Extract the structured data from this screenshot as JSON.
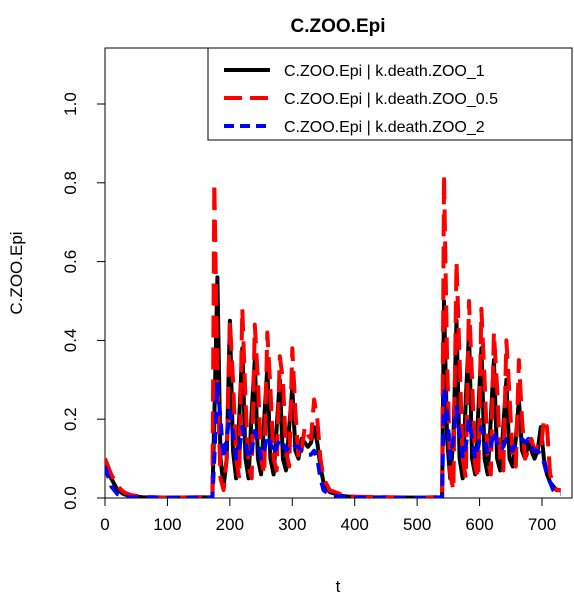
{
  "chart_data": {
    "type": "line",
    "title": "C.ZOO.Epi",
    "xlabel": "t",
    "ylabel": "C.ZOO.Epi",
    "xlim": [
      0,
      730
    ],
    "ylim": [
      0,
      1.1
    ],
    "xticks": [
      0,
      100,
      200,
      300,
      400,
      500,
      600,
      700
    ],
    "yticks": [
      0.0,
      0.2,
      0.4,
      0.6,
      0.8,
      1.0
    ],
    "grid": false,
    "legend": "top-right",
    "series": [
      {
        "name": "C.ZOO.Epi | k.death.ZOO_1",
        "color": "#000000",
        "dash": "solid",
        "x": [
          0,
          10,
          20,
          30,
          40,
          60,
          100,
          172,
          175,
          180,
          185,
          190,
          195,
          200,
          205,
          210,
          215,
          220,
          225,
          230,
          235,
          240,
          245,
          250,
          255,
          260,
          265,
          270,
          275,
          280,
          285,
          290,
          295,
          300,
          305,
          310,
          315,
          320,
          325,
          330,
          335,
          340,
          345,
          350,
          360,
          380,
          400,
          500,
          540,
          543,
          548,
          553,
          558,
          563,
          568,
          573,
          578,
          583,
          588,
          593,
          598,
          603,
          608,
          613,
          618,
          623,
          628,
          633,
          638,
          643,
          648,
          653,
          658,
          663,
          668,
          673,
          678,
          683,
          688,
          693,
          698,
          703,
          708,
          713,
          718,
          723,
          730
        ],
        "y": [
          0.1,
          0.05,
          0.02,
          0.01,
          0.005,
          0.002,
          0.001,
          0.002,
          0.2,
          0.56,
          0.1,
          0.03,
          0.1,
          0.45,
          0.12,
          0.05,
          0.2,
          0.38,
          0.1,
          0.05,
          0.22,
          0.35,
          0.1,
          0.06,
          0.2,
          0.33,
          0.1,
          0.06,
          0.18,
          0.3,
          0.1,
          0.07,
          0.18,
          0.28,
          0.12,
          0.1,
          0.15,
          0.14,
          0.13,
          0.14,
          0.18,
          0.14,
          0.08,
          0.04,
          0.015,
          0.005,
          0.002,
          0.001,
          0.002,
          0.5,
          0.15,
          0.05,
          0.15,
          0.45,
          0.1,
          0.05,
          0.25,
          0.42,
          0.1,
          0.06,
          0.22,
          0.38,
          0.1,
          0.06,
          0.2,
          0.35,
          0.1,
          0.07,
          0.18,
          0.3,
          0.1,
          0.08,
          0.15,
          0.25,
          0.12,
          0.1,
          0.14,
          0.12,
          0.1,
          0.12,
          0.18,
          0.1,
          0.06,
          0.04,
          0.03,
          0.02,
          0.02
        ]
      },
      {
        "name": "C.ZOO.Epi | k.death.ZOO_0.5",
        "color": "#ff0000",
        "dash": "long-dash",
        "x": [
          0,
          10,
          20,
          30,
          40,
          60,
          100,
          172,
          175,
          180,
          185,
          190,
          195,
          200,
          205,
          210,
          215,
          220,
          225,
          230,
          235,
          240,
          245,
          250,
          255,
          260,
          265,
          270,
          275,
          280,
          285,
          290,
          295,
          300,
          305,
          310,
          315,
          320,
          325,
          330,
          335,
          340,
          345,
          350,
          360,
          380,
          400,
          500,
          540,
          543,
          548,
          553,
          558,
          563,
          568,
          573,
          578,
          583,
          588,
          593,
          598,
          603,
          608,
          613,
          618,
          623,
          628,
          633,
          638,
          643,
          648,
          653,
          658,
          663,
          668,
          673,
          678,
          683,
          688,
          693,
          698,
          703,
          708,
          713,
          718,
          723,
          730
        ],
        "y": [
          0.1,
          0.06,
          0.03,
          0.015,
          0.008,
          0.003,
          0.001,
          0.002,
          0.8,
          0.3,
          0.05,
          0.02,
          0.1,
          0.45,
          0.3,
          0.1,
          0.05,
          0.48,
          0.25,
          0.08,
          0.05,
          0.44,
          0.3,
          0.1,
          0.06,
          0.42,
          0.28,
          0.1,
          0.07,
          0.36,
          0.3,
          0.12,
          0.08,
          0.38,
          0.22,
          0.1,
          0.12,
          0.18,
          0.16,
          0.15,
          0.25,
          0.2,
          0.1,
          0.05,
          0.02,
          0.008,
          0.003,
          0.001,
          0.002,
          0.82,
          0.35,
          0.06,
          0.02,
          0.6,
          0.35,
          0.1,
          0.05,
          0.5,
          0.3,
          0.08,
          0.05,
          0.48,
          0.3,
          0.1,
          0.06,
          0.42,
          0.28,
          0.1,
          0.07,
          0.4,
          0.26,
          0.1,
          0.08,
          0.35,
          0.2,
          0.1,
          0.12,
          0.15,
          0.12,
          0.13,
          0.12,
          0.2,
          0.18,
          0.06,
          0.04,
          0.02,
          0.02
        ]
      },
      {
        "name": "C.ZOO.Epi | k.death.ZOO_2",
        "color": "#0000ff",
        "dash": "dash",
        "x": [
          0,
          10,
          20,
          30,
          40,
          60,
          100,
          172,
          175,
          180,
          185,
          190,
          195,
          200,
          205,
          210,
          215,
          220,
          225,
          230,
          235,
          240,
          245,
          250,
          255,
          260,
          265,
          270,
          275,
          280,
          285,
          290,
          295,
          300,
          305,
          310,
          315,
          320,
          325,
          330,
          335,
          340,
          345,
          350,
          360,
          380,
          400,
          500,
          540,
          543,
          548,
          553,
          558,
          563,
          568,
          573,
          578,
          583,
          588,
          593,
          598,
          603,
          608,
          613,
          618,
          623,
          628,
          633,
          638,
          643,
          648,
          653,
          658,
          663,
          668,
          673,
          678,
          683,
          688,
          693,
          698,
          703,
          708,
          713,
          718,
          723,
          730
        ],
        "y": [
          0.08,
          0.03,
          0.01,
          0.005,
          0.002,
          0.001,
          0.0005,
          0.001,
          0.1,
          0.29,
          0.2,
          0.1,
          0.15,
          0.22,
          0.16,
          0.1,
          0.12,
          0.18,
          0.14,
          0.1,
          0.12,
          0.17,
          0.14,
          0.1,
          0.12,
          0.16,
          0.14,
          0.11,
          0.13,
          0.15,
          0.14,
          0.12,
          0.13,
          0.14,
          0.13,
          0.13,
          0.12,
          0.12,
          0.11,
          0.11,
          0.12,
          0.1,
          0.05,
          0.02,
          0.008,
          0.003,
          0.001,
          0.0005,
          0.001,
          0.28,
          0.22,
          0.1,
          0.15,
          0.23,
          0.16,
          0.1,
          0.13,
          0.2,
          0.15,
          0.1,
          0.13,
          0.18,
          0.15,
          0.11,
          0.13,
          0.17,
          0.14,
          0.12,
          0.13,
          0.15,
          0.14,
          0.12,
          0.14,
          0.15,
          0.15,
          0.14,
          0.15,
          0.13,
          0.12,
          0.12,
          0.11,
          0.09,
          0.06,
          0.04,
          0.02,
          0.01,
          0.01
        ]
      }
    ]
  }
}
